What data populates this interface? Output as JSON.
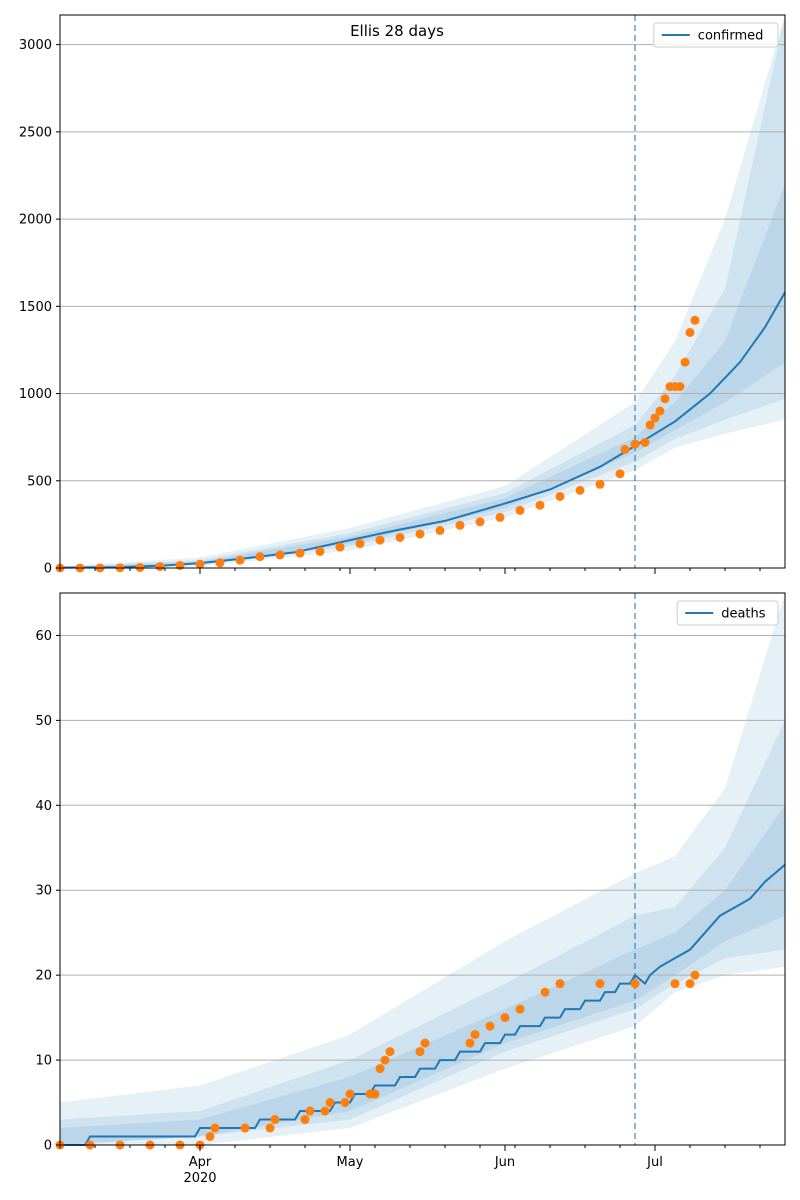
{
  "title": "Ellis 28 days",
  "colors": {
    "model": "#1f77b4",
    "observed": "#ff7f0e",
    "band": "#1f77b4",
    "grid": "#b0b0b0"
  },
  "x_axis": {
    "ticks": [
      {
        "date": "2020-04-01",
        "label": "Apr",
        "sublabel": "2020"
      },
      {
        "date": "2020-05-01",
        "label": "May",
        "sublabel": ""
      },
      {
        "date": "2020-06-01",
        "label": "Jun",
        "sublabel": ""
      },
      {
        "date": "2020-07-01",
        "label": "Jul",
        "sublabel": ""
      }
    ],
    "range": [
      "2020-03-04",
      "2020-07-27"
    ],
    "forecast_start": "2020-06-27"
  },
  "chart_data": [
    {
      "type": "line",
      "legend": "confirmed",
      "legend_position": "top-right",
      "grid": "horizontal",
      "ylim": [
        0,
        3170
      ],
      "yticks": [
        0,
        500,
        1000,
        1500,
        2000,
        2500,
        3000
      ],
      "forecast_marker": "2020-06-27",
      "model_median": [
        [
          "2020-03-04",
          2
        ],
        [
          "2020-03-15",
          4
        ],
        [
          "2020-03-25",
          14
        ],
        [
          "2020-04-01",
          28
        ],
        [
          "2020-04-10",
          55
        ],
        [
          "2020-04-20",
          90
        ],
        [
          "2020-05-01",
          160
        ],
        [
          "2020-05-10",
          215
        ],
        [
          "2020-05-20",
          270
        ],
        [
          "2020-06-01",
          370
        ],
        [
          "2020-06-10",
          450
        ],
        [
          "2020-06-20",
          580
        ],
        [
          "2020-06-27",
          700
        ],
        [
          "2020-07-05",
          840
        ],
        [
          "2020-07-12",
          1000
        ],
        [
          "2020-07-18",
          1180
        ],
        [
          "2020-07-23",
          1380
        ],
        [
          "2020-07-27",
          1580
        ]
      ],
      "bands": [
        {
          "lower": [
            [
              "2020-03-04",
              0
            ],
            [
              "2020-04-01",
              10
            ],
            [
              "2020-05-01",
              100
            ],
            [
              "2020-06-01",
              290
            ],
            [
              "2020-06-27",
              560
            ],
            [
              "2020-07-05",
              690
            ],
            [
              "2020-07-15",
              770
            ],
            [
              "2020-07-27",
              850
            ]
          ],
          "upper": [
            [
              "2020-03-04",
              10
            ],
            [
              "2020-04-01",
              60
            ],
            [
              "2020-05-01",
              230
            ],
            [
              "2020-06-01",
              470
            ],
            [
              "2020-06-27",
              950
            ],
            [
              "2020-07-05",
              1300
            ],
            [
              "2020-07-15",
              2000
            ],
            [
              "2020-07-27",
              3170
            ]
          ]
        },
        {
          "lower": [
            [
              "2020-03-04",
              0
            ],
            [
              "2020-04-01",
              18
            ],
            [
              "2020-05-01",
              125
            ],
            [
              "2020-06-01",
              320
            ],
            [
              "2020-06-27",
              610
            ],
            [
              "2020-07-05",
              740
            ],
            [
              "2020-07-15",
              850
            ],
            [
              "2020-07-27",
              970
            ]
          ],
          "upper": [
            [
              "2020-03-04",
              6
            ],
            [
              "2020-04-01",
              45
            ],
            [
              "2020-05-01",
              200
            ],
            [
              "2020-06-01",
              430
            ],
            [
              "2020-06-27",
              820
            ],
            [
              "2020-07-05",
              1100
            ],
            [
              "2020-07-15",
              1600
            ],
            [
              "2020-07-27",
              3170
            ]
          ]
        },
        {
          "lower": [
            [
              "2020-03-04",
              1
            ],
            [
              "2020-04-01",
              22
            ],
            [
              "2020-05-01",
              140
            ],
            [
              "2020-06-01",
              345
            ],
            [
              "2020-06-27",
              660
            ],
            [
              "2020-07-05",
              790
            ],
            [
              "2020-07-15",
              950
            ],
            [
              "2020-07-27",
              1180
            ]
          ],
          "upper": [
            [
              "2020-03-04",
              4
            ],
            [
              "2020-04-01",
              36
            ],
            [
              "2020-05-01",
              180
            ],
            [
              "2020-06-01",
              400
            ],
            [
              "2020-06-27",
              750
            ],
            [
              "2020-07-05",
              950
            ],
            [
              "2020-07-15",
              1300
            ],
            [
              "2020-07-27",
              2200
            ]
          ]
        }
      ],
      "observed": [
        [
          "2020-03-04",
          0
        ],
        [
          "2020-03-08",
          0
        ],
        [
          "2020-03-12",
          0
        ],
        [
          "2020-03-16",
          1
        ],
        [
          "2020-03-20",
          3
        ],
        [
          "2020-03-24",
          8
        ],
        [
          "2020-03-28",
          15
        ],
        [
          "2020-04-01",
          22
        ],
        [
          "2020-04-05",
          30
        ],
        [
          "2020-04-09",
          45
        ],
        [
          "2020-04-13",
          65
        ],
        [
          "2020-04-17",
          75
        ],
        [
          "2020-04-21",
          85
        ],
        [
          "2020-04-25",
          95
        ],
        [
          "2020-04-29",
          120
        ],
        [
          "2020-05-03",
          140
        ],
        [
          "2020-05-07",
          160
        ],
        [
          "2020-05-11",
          175
        ],
        [
          "2020-05-15",
          195
        ],
        [
          "2020-05-19",
          215
        ],
        [
          "2020-05-23",
          245
        ],
        [
          "2020-05-27",
          265
        ],
        [
          "2020-05-31",
          290
        ],
        [
          "2020-06-04",
          330
        ],
        [
          "2020-06-08",
          360
        ],
        [
          "2020-06-12",
          410
        ],
        [
          "2020-06-16",
          445
        ],
        [
          "2020-06-20",
          480
        ],
        [
          "2020-06-24",
          540
        ],
        [
          "2020-06-25",
          680
        ],
        [
          "2020-06-27",
          710
        ],
        [
          "2020-06-29",
          720
        ],
        [
          "2020-06-30",
          820
        ],
        [
          "2020-07-01",
          860
        ],
        [
          "2020-07-02",
          900
        ],
        [
          "2020-07-03",
          970
        ],
        [
          "2020-07-04",
          1040
        ],
        [
          "2020-07-05",
          1040
        ],
        [
          "2020-07-06",
          1040
        ],
        [
          "2020-07-07",
          1180
        ],
        [
          "2020-07-08",
          1350
        ],
        [
          "2020-07-09",
          1420
        ]
      ]
    },
    {
      "type": "line",
      "legend": "deaths",
      "legend_position": "top-right",
      "grid": "horizontal",
      "ylim": [
        0,
        65
      ],
      "yticks": [
        0,
        10,
        20,
        30,
        40,
        50,
        60
      ],
      "forecast_marker": "2020-06-27",
      "model_median": [
        [
          "2020-03-04",
          0
        ],
        [
          "2020-03-09",
          0
        ],
        [
          "2020-03-10",
          1
        ],
        [
          "2020-03-31",
          1
        ],
        [
          "2020-04-01",
          2
        ],
        [
          "2020-04-12",
          2
        ],
        [
          "2020-04-13",
          3
        ],
        [
          "2020-04-20",
          3
        ],
        [
          "2020-04-21",
          4
        ],
        [
          "2020-04-27",
          4
        ],
        [
          "2020-04-28",
          5
        ],
        [
          "2020-05-01",
          5
        ],
        [
          "2020-05-02",
          6
        ],
        [
          "2020-05-05",
          6
        ],
        [
          "2020-05-06",
          7
        ],
        [
          "2020-05-10",
          7
        ],
        [
          "2020-05-11",
          8
        ],
        [
          "2020-05-14",
          8
        ],
        [
          "2020-05-15",
          9
        ],
        [
          "2020-05-18",
          9
        ],
        [
          "2020-05-19",
          10
        ],
        [
          "2020-05-22",
          10
        ],
        [
          "2020-05-23",
          11
        ],
        [
          "2020-05-27",
          11
        ],
        [
          "2020-05-28",
          12
        ],
        [
          "2020-05-31",
          12
        ],
        [
          "2020-06-01",
          13
        ],
        [
          "2020-06-03",
          13
        ],
        [
          "2020-06-04",
          14
        ],
        [
          "2020-06-08",
          14
        ],
        [
          "2020-06-09",
          15
        ],
        [
          "2020-06-12",
          15
        ],
        [
          "2020-06-13",
          16
        ],
        [
          "2020-06-16",
          16
        ],
        [
          "2020-06-17",
          17
        ],
        [
          "2020-06-20",
          17
        ],
        [
          "2020-06-21",
          18
        ],
        [
          "2020-06-23",
          18
        ],
        [
          "2020-06-24",
          19
        ],
        [
          "2020-06-26",
          19
        ],
        [
          "2020-06-27",
          20
        ],
        [
          "2020-06-29",
          19
        ],
        [
          "2020-06-30",
          20
        ],
        [
          "2020-07-02",
          21
        ],
        [
          "2020-07-05",
          22
        ],
        [
          "2020-07-08",
          23
        ],
        [
          "2020-07-11",
          25
        ],
        [
          "2020-07-14",
          27
        ],
        [
          "2020-07-17",
          28
        ],
        [
          "2020-07-20",
          29
        ],
        [
          "2020-07-23",
          31
        ],
        [
          "2020-07-27",
          33
        ]
      ],
      "bands": [
        {
          "lower": [
            [
              "2020-03-04",
              0
            ],
            [
              "2020-04-01",
              0
            ],
            [
              "2020-05-01",
              2
            ],
            [
              "2020-06-01",
              9
            ],
            [
              "2020-06-27",
              14
            ],
            [
              "2020-07-05",
              18
            ],
            [
              "2020-07-15",
              20
            ],
            [
              "2020-07-27",
              21
            ]
          ],
          "upper": [
            [
              "2020-03-04",
              5
            ],
            [
              "2020-04-01",
              7
            ],
            [
              "2020-05-01",
              13
            ],
            [
              "2020-06-01",
              24
            ],
            [
              "2020-06-27",
              32
            ],
            [
              "2020-07-05",
              34
            ],
            [
              "2020-07-15",
              42
            ],
            [
              "2020-07-27",
              65
            ]
          ]
        },
        {
          "lower": [
            [
              "2020-03-04",
              0
            ],
            [
              "2020-04-01",
              1
            ],
            [
              "2020-05-01",
              3
            ],
            [
              "2020-06-01",
              11
            ],
            [
              "2020-06-27",
              16
            ],
            [
              "2020-07-05",
              19
            ],
            [
              "2020-07-15",
              22
            ],
            [
              "2020-07-27",
              23
            ]
          ],
          "upper": [
            [
              "2020-03-04",
              3
            ],
            [
              "2020-04-01",
              4
            ],
            [
              "2020-05-01",
              10
            ],
            [
              "2020-06-01",
              19
            ],
            [
              "2020-06-27",
              27
            ],
            [
              "2020-07-05",
              28
            ],
            [
              "2020-07-15",
              35
            ],
            [
              "2020-07-27",
              50
            ]
          ]
        },
        {
          "lower": [
            [
              "2020-03-04",
              0
            ],
            [
              "2020-04-01",
              1
            ],
            [
              "2020-05-01",
              4
            ],
            [
              "2020-06-01",
              12
            ],
            [
              "2020-06-27",
              17
            ],
            [
              "2020-07-05",
              20
            ],
            [
              "2020-07-15",
              24
            ],
            [
              "2020-07-27",
              27
            ]
          ],
          "upper": [
            [
              "2020-03-04",
              2
            ],
            [
              "2020-04-01",
              3
            ],
            [
              "2020-05-01",
              8
            ],
            [
              "2020-06-01",
              16
            ],
            [
              "2020-06-27",
              23
            ],
            [
              "2020-07-05",
              25
            ],
            [
              "2020-07-15",
              30
            ],
            [
              "2020-07-27",
              40
            ]
          ]
        }
      ],
      "observed": [
        [
          "2020-03-04",
          0
        ],
        [
          "2020-03-10",
          0
        ],
        [
          "2020-03-16",
          0
        ],
        [
          "2020-03-22",
          0
        ],
        [
          "2020-03-28",
          0
        ],
        [
          "2020-04-01",
          0
        ],
        [
          "2020-04-03",
          1
        ],
        [
          "2020-04-04",
          2
        ],
        [
          "2020-04-10",
          2
        ],
        [
          "2020-04-15",
          2
        ],
        [
          "2020-04-16",
          3
        ],
        [
          "2020-04-22",
          3
        ],
        [
          "2020-04-23",
          4
        ],
        [
          "2020-04-26",
          4
        ],
        [
          "2020-04-27",
          5
        ],
        [
          "2020-04-30",
          5
        ],
        [
          "2020-05-01",
          6
        ],
        [
          "2020-05-05",
          6
        ],
        [
          "2020-05-06",
          6
        ],
        [
          "2020-05-07",
          9
        ],
        [
          "2020-05-08",
          10
        ],
        [
          "2020-05-09",
          11
        ],
        [
          "2020-05-15",
          11
        ],
        [
          "2020-05-16",
          12
        ],
        [
          "2020-05-25",
          12
        ],
        [
          "2020-05-26",
          13
        ],
        [
          "2020-05-29",
          14
        ],
        [
          "2020-06-01",
          15
        ],
        [
          "2020-06-04",
          16
        ],
        [
          "2020-06-09",
          18
        ],
        [
          "2020-06-12",
          19
        ],
        [
          "2020-06-20",
          19
        ],
        [
          "2020-06-27",
          19
        ],
        [
          "2020-07-05",
          19
        ],
        [
          "2020-07-08",
          19
        ],
        [
          "2020-07-09",
          20
        ]
      ]
    }
  ]
}
